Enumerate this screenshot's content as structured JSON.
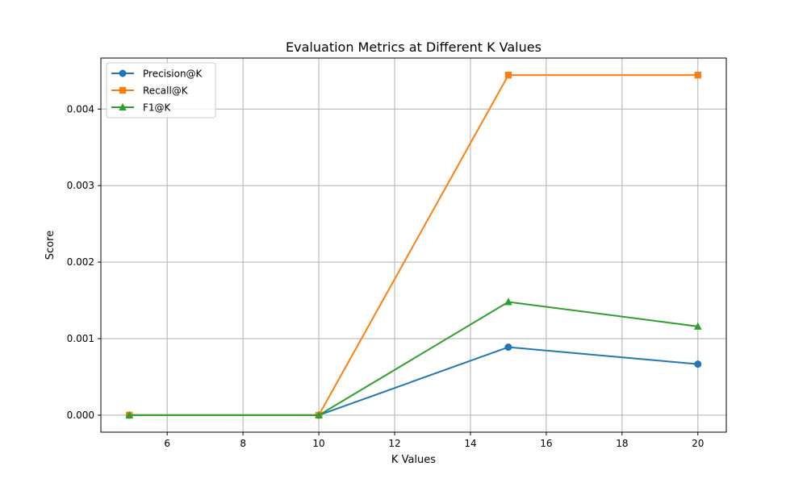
{
  "chart_data": {
    "type": "line",
    "title": "Evaluation Metrics at Different K Values",
    "xlabel": "K Values",
    "ylabel": "Score",
    "x": [
      5,
      10,
      15,
      20
    ],
    "xlim": [
      4.25,
      20.75
    ],
    "ylim": [
      -0.000222,
      0.004667
    ],
    "xticks": [
      6,
      8,
      10,
      12,
      14,
      16,
      18,
      20
    ],
    "yticks": [
      0.0,
      0.001,
      0.002,
      0.003,
      0.004
    ],
    "xtick_labels": [
      "6",
      "8",
      "10",
      "12",
      "14",
      "16",
      "18",
      "20"
    ],
    "ytick_labels": [
      "0.000",
      "0.001",
      "0.002",
      "0.003",
      "0.004"
    ],
    "grid": true,
    "legend_position": "top-left",
    "series": [
      {
        "name": "Precision@K",
        "values": [
          0.0,
          0.0,
          0.000889,
          0.000667
        ],
        "color": "#1f77b4",
        "marker": "circle"
      },
      {
        "name": "Recall@K",
        "values": [
          0.0,
          0.0,
          0.004444,
          0.004444
        ],
        "color": "#ff7f0e",
        "marker": "square"
      },
      {
        "name": "F1@K",
        "values": [
          0.0,
          0.0,
          0.00148,
          0.00116
        ],
        "color": "#2ca02c",
        "marker": "triangle"
      }
    ]
  }
}
